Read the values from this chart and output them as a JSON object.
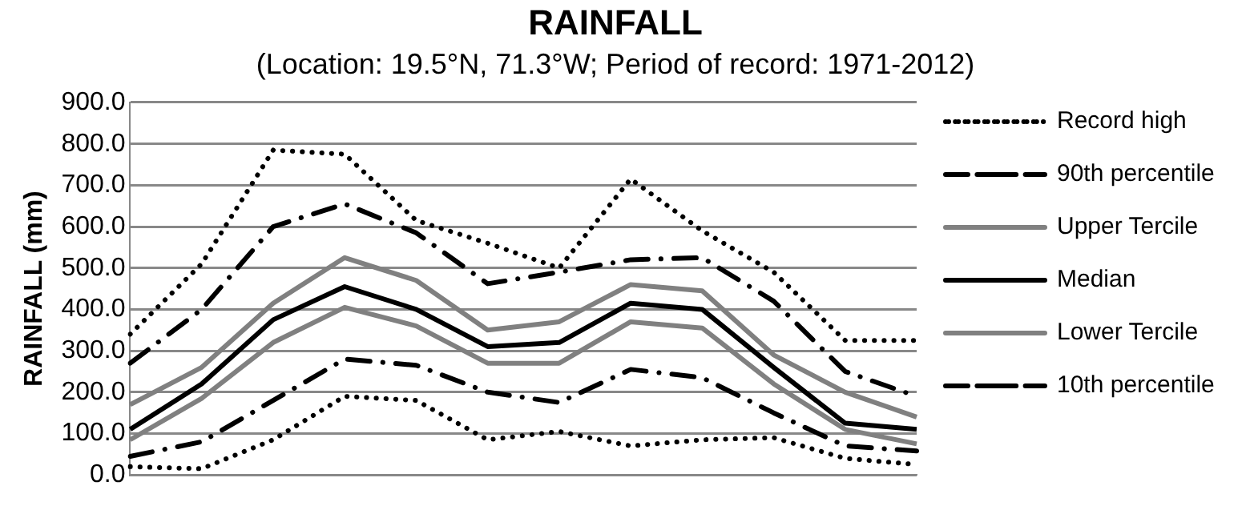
{
  "chart_data": {
    "type": "line",
    "title": "RAINFALL",
    "subtitle": "(Location: 19.5°N, 71.3°W; Period of record: 1971-2012)",
    "ylabel": "RAINFALL (mm)",
    "categories": [
      null,
      null,
      null,
      null,
      null,
      null,
      null,
      null,
      null,
      null,
      null,
      null
    ],
    "ylim": [
      0,
      900
    ],
    "yticks": [
      {
        "value": 0,
        "label": "0.0"
      },
      {
        "value": 100,
        "label": "100.0"
      },
      {
        "value": 200,
        "label": "200.0"
      },
      {
        "value": 300,
        "label": "300.0"
      },
      {
        "value": 400,
        "label": "400.0"
      },
      {
        "value": 500,
        "label": "500.0"
      },
      {
        "value": 600,
        "label": "600.0"
      },
      {
        "value": 700,
        "label": "700.0"
      },
      {
        "value": 800,
        "label": "800.0"
      },
      {
        "value": 900,
        "label": "900.0"
      }
    ],
    "grid": "y",
    "legend": "right",
    "marker": "none",
    "series": [
      {
        "name": "Record high",
        "color": "#000000",
        "line_style": "dotted",
        "values": [
          340,
          510,
          785,
          775,
          615,
          560,
          500,
          715,
          590,
          490,
          325,
          325
        ]
      },
      {
        "name": "90th percentile",
        "color": "#000000",
        "line_style": "dashdot",
        "values": [
          270,
          400,
          600,
          655,
          585,
          462,
          490,
          520,
          525,
          420,
          250,
          190
        ]
      },
      {
        "name": "Upper Tercile",
        "color": "#808080",
        "line_style": "solid",
        "values": [
          170,
          260,
          415,
          525,
          470,
          350,
          370,
          460,
          445,
          290,
          200,
          140
        ]
      },
      {
        "name": "Median",
        "color": "#000000",
        "line_style": "solid",
        "values": [
          110,
          220,
          375,
          455,
          400,
          310,
          320,
          415,
          400,
          260,
          125,
          110
        ]
      },
      {
        "name": "Lower Tercile",
        "color": "#808080",
        "line_style": "solid",
        "values": [
          85,
          185,
          320,
          405,
          360,
          270,
          270,
          370,
          355,
          220,
          110,
          75
        ]
      },
      {
        "name": "10th percentile",
        "color": "#000000",
        "line_style": "dashdot",
        "values": [
          45,
          80,
          180,
          280,
          265,
          200,
          175,
          255,
          235,
          150,
          70,
          58
        ]
      },
      {
        "color": "#000000",
        "line_style": "dotted",
        "values": [
          20,
          15,
          85,
          190,
          180,
          85,
          105,
          70,
          85,
          90,
          40,
          25
        ]
      }
    ]
  }
}
